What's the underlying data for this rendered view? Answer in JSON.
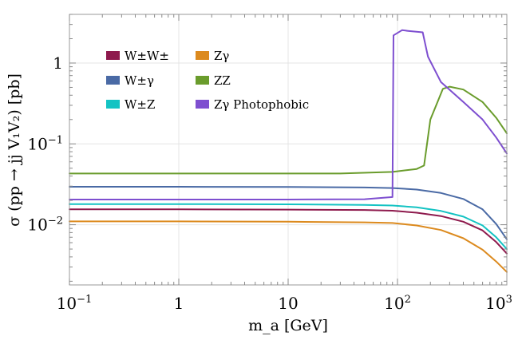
{
  "chart_data": {
    "type": "line",
    "title": "",
    "xlabel": "m_a [GeV]",
    "ylabel": "σ (pp → jj V₁V₂) [pb]",
    "xscale": "log",
    "yscale": "log",
    "xlim": [
      0.1,
      1000
    ],
    "ylim": [
      0.0018,
      4
    ],
    "grid": true,
    "legend_position": "top-left",
    "x_ticks": [
      {
        "label": "10",
        "sup": "−1"
      },
      {
        "label": "1",
        "sup": ""
      },
      {
        "label": "10",
        "sup": ""
      },
      {
        "label": "10",
        "sup": "2"
      },
      {
        "label": "10",
        "sup": "3"
      }
    ],
    "y_ticks": [
      {
        "label": "10",
        "sup": "−2"
      },
      {
        "label": "10",
        "sup": "−1"
      },
      {
        "label": "1",
        "sup": ""
      }
    ],
    "series": [
      {
        "name": "W±W±",
        "color": "#8e1a4d",
        "x": [
          0.1,
          1,
          10,
          50,
          90,
          150,
          250,
          400,
          600,
          800,
          1000
        ],
        "y": [
          0.0155,
          0.0155,
          0.0154,
          0.0152,
          0.0149,
          0.0141,
          0.0128,
          0.0109,
          0.0085,
          0.0061,
          0.0044
        ]
      },
      {
        "name": "W±γ",
        "color": "#4a6aa5",
        "x": [
          0.1,
          1,
          10,
          50,
          90,
          150,
          250,
          400,
          600,
          800,
          1000
        ],
        "y": [
          0.0295,
          0.0295,
          0.0293,
          0.0289,
          0.0284,
          0.0272,
          0.0247,
          0.0208,
          0.0155,
          0.0102,
          0.0066
        ]
      },
      {
        "name": "W±Z",
        "color": "#14c3c3",
        "x": [
          0.1,
          1,
          10,
          50,
          90,
          150,
          250,
          400,
          600,
          800,
          1000
        ],
        "y": [
          0.018,
          0.018,
          0.0179,
          0.0176,
          0.0173,
          0.0164,
          0.0148,
          0.0126,
          0.0098,
          0.007,
          0.005
        ]
      },
      {
        "name": "Zγ",
        "color": "#dc8a1e",
        "x": [
          0.1,
          1,
          10,
          50,
          90,
          150,
          250,
          400,
          600,
          800,
          1000
        ],
        "y": [
          0.011,
          0.011,
          0.0109,
          0.0107,
          0.0105,
          0.0098,
          0.0086,
          0.0068,
          0.0049,
          0.0035,
          0.0026
        ]
      },
      {
        "name": "ZZ",
        "color": "#6a9c2c",
        "x": [
          0.1,
          1,
          10,
          30,
          90,
          150,
          175,
          200,
          260,
          300,
          400,
          600,
          800,
          1000
        ],
        "y": [
          0.043,
          0.043,
          0.043,
          0.043,
          0.045,
          0.049,
          0.054,
          0.2,
          0.48,
          0.51,
          0.47,
          0.33,
          0.21,
          0.135
        ]
      },
      {
        "name": "Zγ Photophobic",
        "color": "#7e4fd0",
        "x": [
          0.1,
          1,
          10,
          50,
          90,
          92,
          110,
          125,
          170,
          190,
          250,
          400,
          600,
          800,
          1000
        ],
        "y": [
          0.0205,
          0.0205,
          0.0205,
          0.0207,
          0.022,
          2.2,
          2.55,
          2.5,
          2.4,
          1.2,
          0.58,
          0.33,
          0.2,
          0.12,
          0.076
        ]
      }
    ]
  }
}
